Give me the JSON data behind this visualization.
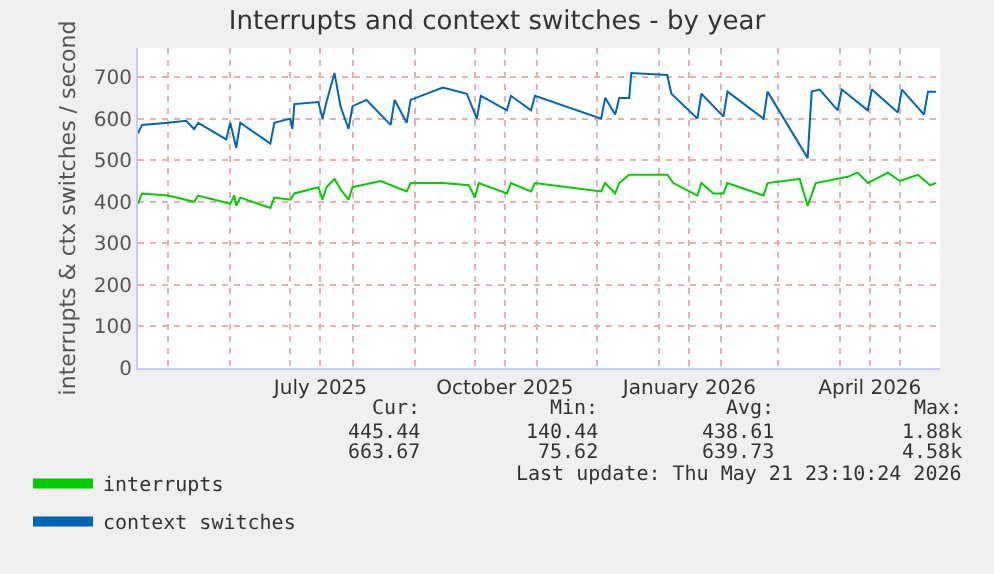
{
  "chart_data": {
    "type": "line",
    "title": "Interrupts and context switches - by year",
    "ylabel": "interrupts & ctx switches / second",
    "xlim": [
      "2025-04-16",
      "2026-05-21"
    ],
    "ylim": [
      0,
      770
    ],
    "yticks": [
      0,
      100,
      200,
      300,
      400,
      500,
      600,
      700
    ],
    "xticks": [
      {
        "value": "2025-05-01",
        "label": null
      },
      {
        "value": "2025-06-01",
        "label": null
      },
      {
        "value": "2025-07-01",
        "label": null
      },
      {
        "value": "2025-07-16",
        "label": "July 2025"
      },
      {
        "value": "2025-08-01",
        "label": null
      },
      {
        "value": "2025-09-01",
        "label": null
      },
      {
        "value": "2025-10-01",
        "label": null
      },
      {
        "value": "2025-10-16",
        "label": "October 2025"
      },
      {
        "value": "2025-11-01",
        "label": null
      },
      {
        "value": "2025-12-01",
        "label": null
      },
      {
        "value": "2026-01-01",
        "label": null
      },
      {
        "value": "2026-01-16",
        "label": "January 2026"
      },
      {
        "value": "2026-02-01",
        "label": null
      },
      {
        "value": "2026-03-01",
        "label": null
      },
      {
        "value": "2026-04-01",
        "label": null
      },
      {
        "value": "2026-04-16",
        "label": "April 2026"
      },
      {
        "value": "2026-05-01",
        "label": null
      }
    ],
    "grid": true,
    "legend": "bottom left",
    "marker": "none",
    "line_style": "solid",
    "series": [
      {
        "name": "interrupts",
        "color": "#00cc00",
        "x": [
          "2025-04-16",
          "2025-04-18",
          "2025-05-01",
          "2025-05-14",
          "2025-05-16",
          "2025-06-01",
          "2025-06-03",
          "2025-06-04",
          "2025-06-06",
          "2025-06-21",
          "2025-06-23",
          "2025-07-01",
          "2025-07-03",
          "2025-07-15",
          "2025-07-17",
          "2025-07-19",
          "2025-07-23",
          "2025-07-26",
          "2025-07-30",
          "2025-08-01",
          "2025-08-15",
          "2025-08-28",
          "2025-08-30",
          "2025-09-15",
          "2025-09-28",
          "2025-10-01",
          "2025-10-03",
          "2025-10-17",
          "2025-10-19",
          "2025-10-29",
          "2025-10-31",
          "2025-12-03",
          "2025-12-05",
          "2025-12-10",
          "2025-12-12",
          "2025-12-17",
          "2026-01-05",
          "2026-01-08",
          "2026-01-20",
          "2026-01-22",
          "2026-01-28",
          "2026-02-02",
          "2026-02-04",
          "2026-02-22",
          "2026-02-24",
          "2026-03-12",
          "2026-03-16",
          "2026-03-20",
          "2026-04-05",
          "2026-04-10",
          "2026-04-15",
          "2026-04-25",
          "2026-05-01",
          "2026-05-10",
          "2026-05-16",
          "2026-05-19"
        ],
        "values": [
          395,
          420,
          415,
          400,
          415,
          395,
          415,
          390,
          410,
          385,
          410,
          405,
          420,
          435,
          405,
          435,
          455,
          430,
          405,
          435,
          450,
          425,
          445,
          445,
          440,
          410,
          445,
          420,
          445,
          425,
          445,
          425,
          445,
          420,
          445,
          465,
          465,
          445,
          415,
          445,
          420,
          420,
          445,
          415,
          445,
          455,
          390,
          445,
          460,
          470,
          445,
          470,
          450,
          465,
          440,
          445
        ]
      },
      {
        "name": "context switches",
        "color": "#0066b3",
        "x": [
          "2025-04-16",
          "2025-04-18",
          "2025-05-01",
          "2025-05-10",
          "2025-05-14",
          "2025-05-16",
          "2025-05-30",
          "2025-06-01",
          "2025-06-04",
          "2025-06-06",
          "2025-06-21",
          "2025-06-23",
          "2025-07-01",
          "2025-07-02",
          "2025-07-03",
          "2025-07-15",
          "2025-07-17",
          "2025-07-19",
          "2025-07-23",
          "2025-07-26",
          "2025-07-30",
          "2025-08-01",
          "2025-08-08",
          "2025-08-20",
          "2025-08-22",
          "2025-08-28",
          "2025-08-30",
          "2025-09-15",
          "2025-09-27",
          "2025-10-02",
          "2025-10-04",
          "2025-10-17",
          "2025-10-19",
          "2025-10-29",
          "2025-10-31",
          "2025-12-03",
          "2025-12-05",
          "2025-12-10",
          "2025-12-12",
          "2025-12-17",
          "2025-12-18",
          "2026-01-05",
          "2026-01-07",
          "2026-01-20",
          "2026-01-22",
          "2026-02-02",
          "2026-02-04",
          "2026-02-22",
          "2026-02-24",
          "2026-03-16",
          "2026-03-18",
          "2026-03-22",
          "2026-03-31",
          "2026-04-02",
          "2026-04-15",
          "2026-04-17",
          "2026-04-30",
          "2026-05-02",
          "2026-05-13",
          "2026-05-15",
          "2026-05-19"
        ],
        "values": [
          565,
          585,
          590,
          595,
          575,
          590,
          550,
          590,
          530,
          590,
          540,
          590,
          600,
          575,
          635,
          640,
          600,
          640,
          710,
          630,
          575,
          630,
          645,
          585,
          645,
          590,
          645,
          675,
          660,
          600,
          655,
          620,
          655,
          620,
          655,
          600,
          650,
          610,
          650,
          650,
          710,
          705,
          660,
          600,
          660,
          605,
          665,
          600,
          665,
          505,
          665,
          670,
          620,
          670,
          620,
          670,
          615,
          670,
          610,
          665,
          665
        ]
      }
    ],
    "annotations": [
      "Cur:",
      "Min:",
      "Avg:",
      "Max:",
      "445.44",
      "140.44",
      "438.61",
      "1.88k",
      "663.67",
      "75.62",
      "639.73",
      "4.58k",
      "Last update: Thu May 21 23:10:24 2026"
    ]
  }
}
